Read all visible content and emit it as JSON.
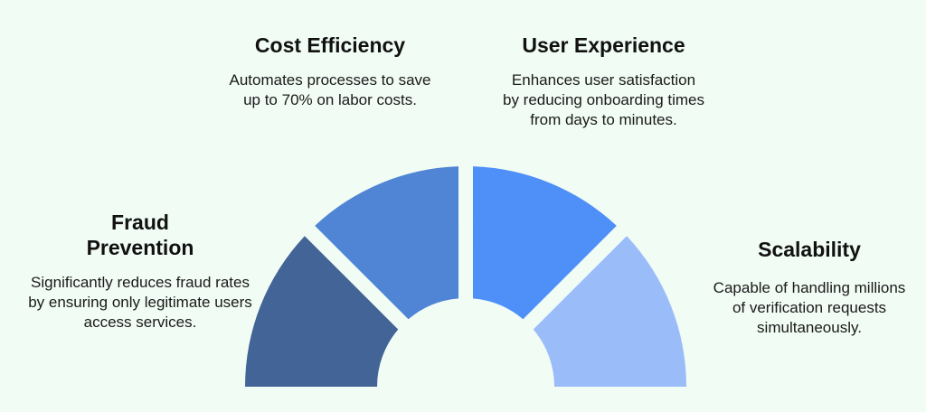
{
  "segments": [
    {
      "id": "fraud",
      "color": "#426496"
    },
    {
      "id": "cost",
      "color": "#4f85d4"
    },
    {
      "id": "ux",
      "color": "#4e8ff8"
    },
    {
      "id": "scal",
      "color": "#9abdfa"
    }
  ],
  "items": {
    "fraud": {
      "title": "Fraud Prevention",
      "desc": "Significantly reduces fraud rates by ensuring only legitimate users access services."
    },
    "cost": {
      "title": "Cost Efficiency",
      "desc": "Automates processes to save up to 70% on labor costs."
    },
    "ux": {
      "title": "User Experience",
      "desc": "Enhances user satisfaction by reducing onboarding times from days to minutes."
    },
    "scal": {
      "title": "Scalability",
      "desc": "Capable of handling millions of verification requests simultaneously."
    }
  }
}
